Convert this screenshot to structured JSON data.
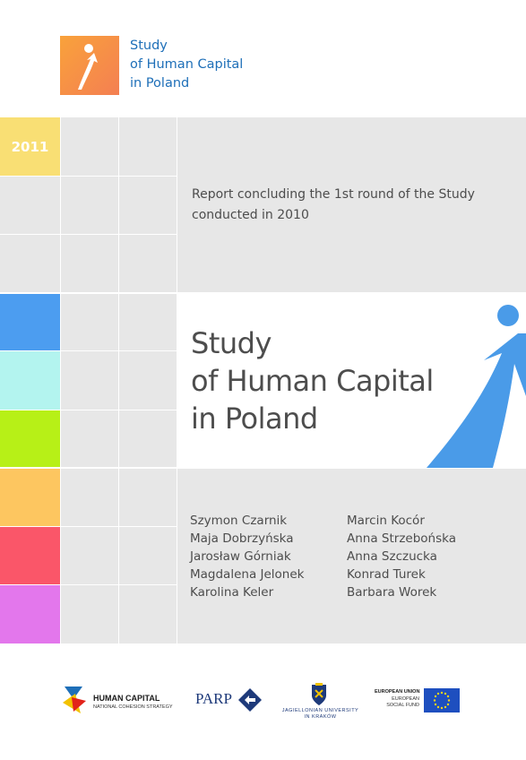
{
  "header": {
    "logo_icon": "human-figure-arrow-icon",
    "title_lines": [
      "Study",
      "of Human Capital",
      "in Poland"
    ]
  },
  "cover": {
    "year": "2011",
    "report_lines": [
      "Report concluding the 1st round of the Study",
      "conducted in 2010"
    ],
    "title_lines": [
      "Study",
      "of Human Capital",
      "in Poland"
    ],
    "arrow_icon": "human-figure-arrow-icon"
  },
  "authors": {
    "left": [
      "Szymon Czarnik",
      "Maja Dobrzyńska",
      "Jarosław Górniak",
      "Magdalena Jelonek",
      "Karolina Keler"
    ],
    "right": [
      "Marcin Kocór",
      "Anna Strzebońska",
      "Anna Szczucka",
      "Konrad Turek",
      "Barbara Worek"
    ]
  },
  "footer": {
    "hc_title": "HUMAN CAPITAL",
    "hc_subtitle": "NATIONAL COHESION STRATEGY",
    "parp": "PARP",
    "uj_line1": "JAGIELLONIAN UNIVERSITY",
    "uj_line2": "IN KRAKÓW",
    "eu_title": "EUROPEAN UNION",
    "eu_line1": "EUROPEAN",
    "eu_line2": "SOCIAL FUND"
  },
  "colors": {
    "brand_blue": "#1e6fb8",
    "arrow_blue": "#4a9be8",
    "year_yellow": "#f9df74",
    "stripe_blue": "#4c9df0",
    "stripe_cyan": "#b3f4ef",
    "stripe_lime": "#b7f017",
    "stripe_orange": "#fdc660",
    "stripe_red": "#fa5669",
    "stripe_violet": "#e377ec"
  }
}
